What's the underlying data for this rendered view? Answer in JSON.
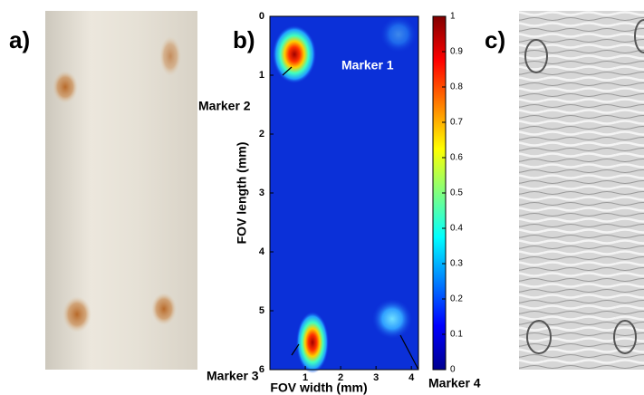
{
  "panel_labels": [
    "a)",
    "b)",
    "c)"
  ],
  "heatmap": {
    "xlabel": "FOV width (mm)",
    "ylabel": "FOV length (mm)",
    "xlim": [
      0,
      4.2
    ],
    "xticks": [
      1,
      2,
      3,
      4
    ],
    "ylim": [
      0,
      6
    ],
    "yticks": [
      0,
      1,
      2,
      3,
      4,
      5,
      6
    ],
    "clim": [
      0,
      1
    ],
    "cticks": [
      0,
      0.1,
      0.2,
      0.3,
      0.4,
      0.5,
      0.6,
      0.7,
      0.8,
      0.9,
      1
    ],
    "annotations": [
      "Marker 1",
      "Marker 2",
      "Marker 3",
      "Marker 4"
    ]
  }
}
